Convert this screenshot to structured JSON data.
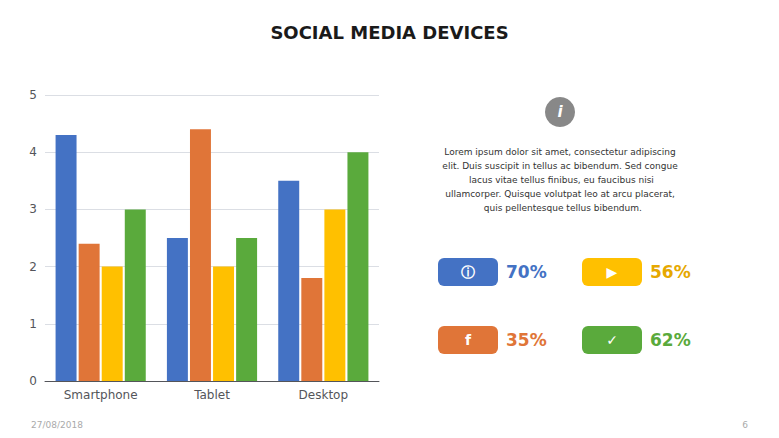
{
  "chart_data": {
    "type": "bar",
    "title": "SOCIAL MEDIA DEVICES",
    "categories": [
      "Smartphone",
      "Tablet",
      "Desktop"
    ],
    "series": [
      {
        "color": "#4472c4",
        "values": [
          4.3,
          2.5,
          3.5
        ]
      },
      {
        "color": "#e07538",
        "values": [
          2.4,
          4.4,
          1.8
        ]
      },
      {
        "color": "#ffc000",
        "values": [
          2.0,
          2.0,
          3.0
        ]
      },
      {
        "color": "#5aaa3c",
        "values": [
          3.0,
          2.5,
          4.0
        ]
      }
    ],
    "ylim": [
      0,
      5
    ],
    "yticks": [
      0,
      1,
      2,
      3,
      4,
      5
    ],
    "grid": true,
    "annotations": [
      {
        "text": "i",
        "color": "#888888"
      },
      {
        "text": "Lorem ipsum dolor sit amet, consectetur adipiscing\nelit. Duis suscipit in tellus ac bibendum. Sed congue\n lacus vitae tellus finibus, eu faucibus nisi\nullamcorper. Quisque volutpat leo at arcu placerat,\n  quis pellentesque tellus bibendum."
      },
      {
        "text": "ⓘ",
        "color": "#4472c4"
      },
      {
        "text": "70%",
        "color": "#4472c4"
      },
      {
        "text": "▶",
        "color": "#ffc000"
      },
      {
        "text": "56%",
        "color": "#e6a800"
      },
      {
        "text": "f",
        "color": "#e07538"
      },
      {
        "text": "35%",
        "color": "#e07538"
      },
      {
        "text": "✓",
        "color": "#5aaa3c"
      },
      {
        "text": "62%",
        "color": "#5aaa3c"
      },
      {
        "text": "27/08/2018"
      },
      {
        "text": "6"
      }
    ]
  }
}
